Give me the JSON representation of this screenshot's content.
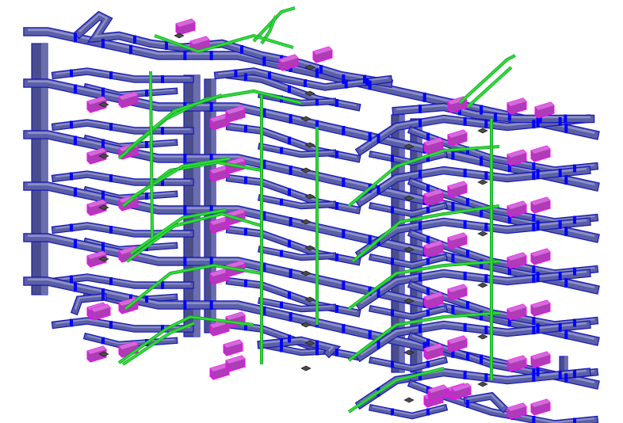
{
  "scene": {
    "kind": "isometric 3D MEP duct network model",
    "colors": {
      "background": "#ffffff",
      "duct_fill": "#5b5fa6",
      "duct_edge": "#1a1ab8",
      "duct_top": "#8c90c8",
      "flange": "#0000ff",
      "riser": "#4a4d8c",
      "pipe": "#2ddc3a",
      "pipe_edge": "#119a1c",
      "equipment": "#b03ab8",
      "equipment_edge": "#ff00ff",
      "diffuser": "#4a4a4a"
    }
  }
}
